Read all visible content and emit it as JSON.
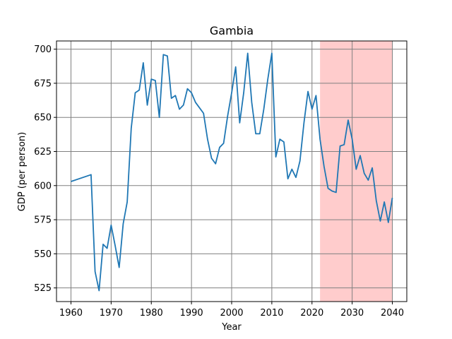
{
  "chart_data": {
    "type": "line",
    "title": "Gambia",
    "xlabel": "Year",
    "ylabel": "GDP (per person)",
    "xlim": [
      1956.4,
      2043.6
    ],
    "ylim": [
      515,
      706
    ],
    "grid": true,
    "x_ticks": [
      1960,
      1970,
      1980,
      1990,
      2000,
      2010,
      2020,
      2030,
      2040
    ],
    "y_ticks": [
      525,
      550,
      575,
      600,
      625,
      650,
      675,
      700
    ],
    "line_color": "#1f77b4",
    "highlight": {
      "x_start": 2022,
      "x_end": 2040,
      "color": "#ffcccc"
    },
    "series": [
      {
        "x": [
          1960,
          1965,
          1966,
          1967,
          1968,
          1969,
          1970,
          1971,
          1972,
          1973,
          1974,
          1975,
          1976,
          1977,
          1978,
          1979,
          1980,
          1981,
          1982,
          1983,
          1984,
          1985,
          1986,
          1987,
          1988,
          1989,
          1990,
          1991,
          1992,
          1993,
          1994,
          1995,
          1996,
          1997,
          1998,
          1999,
          2000,
          2001,
          2002,
          2003,
          2004,
          2005,
          2006,
          2007,
          2008,
          2009,
          2010,
          2011,
          2012,
          2013,
          2014,
          2015,
          2016,
          2017,
          2018,
          2019,
          2020,
          2021,
          2022,
          2023,
          2024,
          2025,
          2026,
          2027,
          2028,
          2029,
          2030,
          2031,
          2032,
          2033,
          2034,
          2035,
          2036,
          2037,
          2038,
          2039,
          2040
        ],
        "values": [
          603,
          608,
          537,
          523,
          557,
          554,
          571,
          556,
          540,
          572,
          588,
          642,
          668,
          670,
          690,
          659,
          678,
          677,
          650,
          696,
          695,
          664,
          666,
          656,
          659,
          671,
          668,
          661,
          657,
          653,
          634,
          620,
          616,
          628,
          631,
          651,
          668,
          687,
          646,
          668,
          697,
          661,
          638,
          638,
          656,
          678,
          697,
          621,
          634,
          632,
          605,
          612,
          606,
          618,
          646,
          669,
          656,
          666,
          634,
          614,
          598,
          596,
          595,
          629,
          630,
          648,
          634,
          612,
          622,
          609,
          604,
          613,
          589,
          574,
          588,
          573,
          591
        ]
      }
    ]
  }
}
